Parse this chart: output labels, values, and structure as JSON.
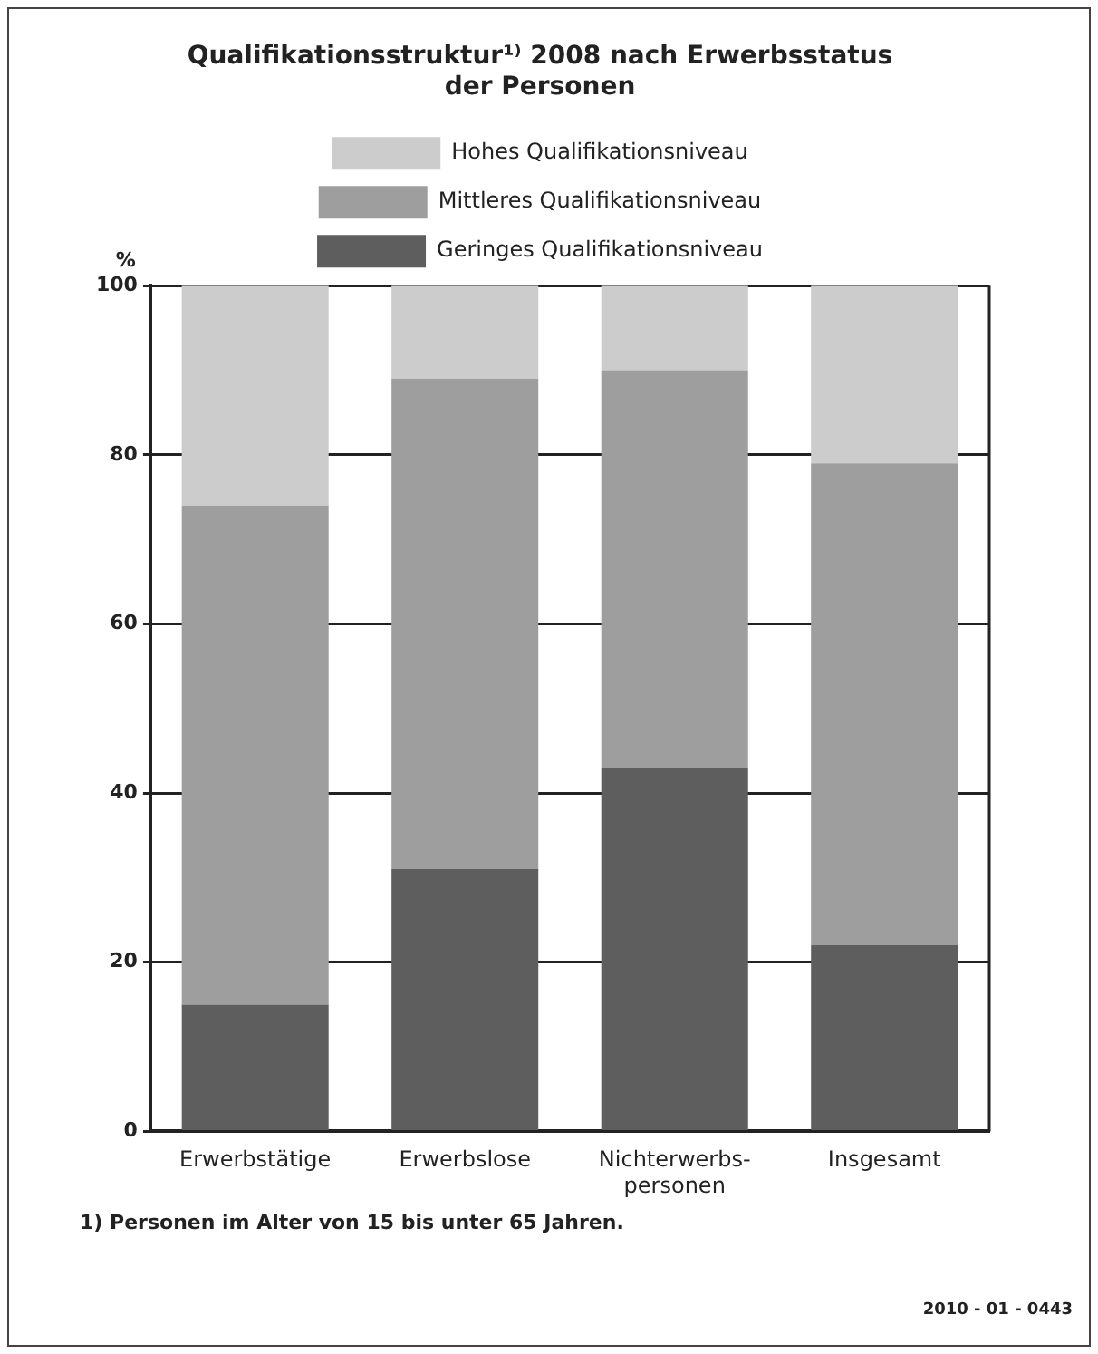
{
  "chart_data": {
    "type": "bar",
    "title": "Qualifikationsstruktur¹⁾ 2008 nach Erwerbsstatus\nder Personen",
    "ylabel": "%",
    "categories": [
      "Erwerbstätige",
      "Erwerbslose",
      "Nichterwerbs-\npersonen",
      "Insgesamt"
    ],
    "series": [
      {
        "name": "Geringes Qualifikationsniveau",
        "color": "#5e5e5e",
        "values": [
          15,
          31,
          43,
          22
        ]
      },
      {
        "name": "Mittleres Qualifikationsniveau",
        "color": "#9e9e9e",
        "values": [
          59,
          58,
          47,
          57
        ]
      },
      {
        "name": "Hohes Qualifikationsniveau",
        "color": "#cccccc",
        "values": [
          26,
          11,
          10,
          21
        ]
      }
    ],
    "stacked": true,
    "ylim": [
      0,
      100
    ],
    "yticks": [
      0,
      20,
      40,
      60,
      80,
      100
    ],
    "grid": "y",
    "legend": "top",
    "annotations": [
      "1) Personen im Alter von 15 bis unter 65 Jahren.",
      "2010 - 01 - 0443"
    ]
  }
}
